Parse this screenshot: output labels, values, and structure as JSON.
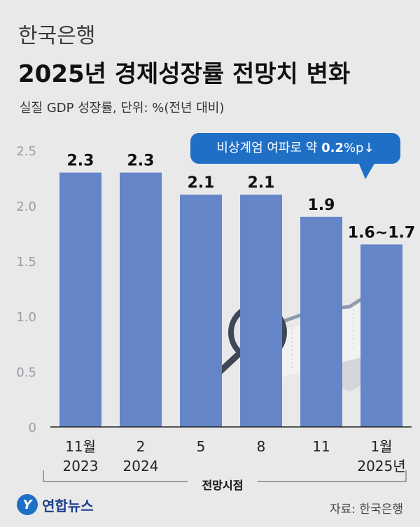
{
  "header": {
    "org": "한국은행",
    "title": "2025년 경제성장률 전망치 변화",
    "subtitle": "실질 GDP 성장률, 단위: %(전년 대비)"
  },
  "callout": {
    "prefix": "비상계엄 여파로 약 ",
    "value": "0.2",
    "suffix": "%p↓"
  },
  "chart_data": {
    "type": "bar",
    "categories": [
      [
        "11월",
        "2023"
      ],
      [
        "2",
        "2024"
      ],
      [
        "5",
        ""
      ],
      [
        "8",
        ""
      ],
      [
        "11",
        ""
      ],
      [
        "1월",
        "2025년"
      ]
    ],
    "values": [
      2.3,
      2.3,
      2.1,
      2.1,
      1.9,
      1.65
    ],
    "data_labels": [
      "2.3",
      "2.3",
      "2.1",
      "2.1",
      "1.9",
      "1.6~1.7"
    ],
    "xlabel": "전망시점",
    "ylabel": "",
    "ylim": [
      0,
      2.5
    ],
    "yticks": [
      "0",
      "0.5",
      "1.0",
      "1.5",
      "2.0",
      "2.5"
    ],
    "grid": false,
    "bar_color": "#6485c7"
  },
  "footer": {
    "logo_mark": "Y",
    "logo_text": "연합뉴스",
    "source": "자료: 한국은행"
  }
}
